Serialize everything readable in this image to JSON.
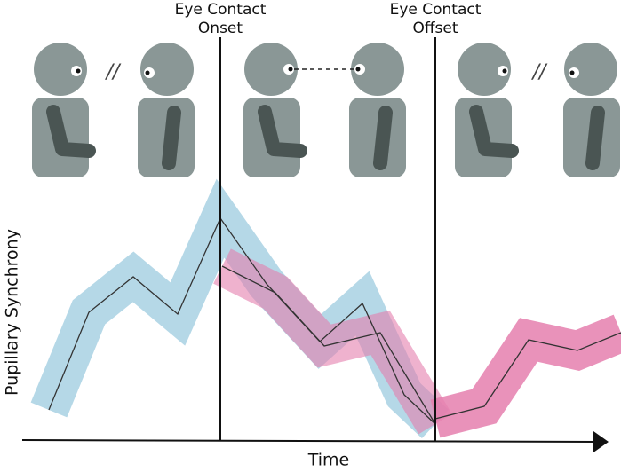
{
  "onset_label": [
    "Eye Contact",
    "Onset"
  ],
  "offset_label": [
    "Eye Contact",
    "Offset"
  ],
  "separators": [
    "//",
    "//"
  ],
  "y_axis_label": "Pupillary Synchrony",
  "x_axis_label": "Time"
}
